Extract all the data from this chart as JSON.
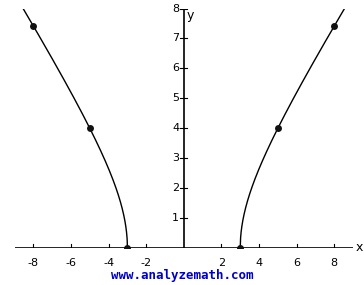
{
  "xlabel": "x",
  "ylabel": "y",
  "xlim": [
    -9,
    9
  ],
  "ylim": [
    0,
    8
  ],
  "xticks": [
    -8,
    -6,
    -4,
    -2,
    2,
    4,
    6,
    8
  ],
  "yticks": [
    1,
    2,
    3,
    4,
    5,
    6,
    7,
    8
  ],
  "curve_color": "#000000",
  "curve_linewidth": 1.0,
  "points": [
    [
      -3,
      0
    ],
    [
      3,
      0
    ],
    [
      -5,
      4
    ],
    [
      5,
      4
    ],
    [
      -8,
      7.4162
    ],
    [
      8,
      7.4162
    ]
  ],
  "point_color": "#111111",
  "point_size": 5,
  "axis_color": "#000000",
  "background_color": "#ffffff",
  "watermark": "www.analyzemath.com",
  "watermark_color": "#0000cc",
  "watermark_fontsize": 9,
  "tick_fontsize": 8,
  "axis_label_fontsize": 9
}
